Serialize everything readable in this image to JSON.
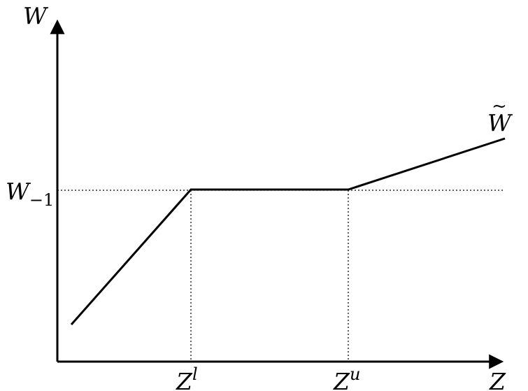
{
  "labels": {
    "y_axis": "W",
    "x_axis": "Z",
    "w_prev_base": "W",
    "w_prev_sub": "−1",
    "z_lower_base": "Z",
    "z_lower_sup": "l",
    "z_upper_base": "Z",
    "z_upper_sup": "u",
    "w_tilde_base": "W",
    "w_tilde_mark": "~"
  }
}
